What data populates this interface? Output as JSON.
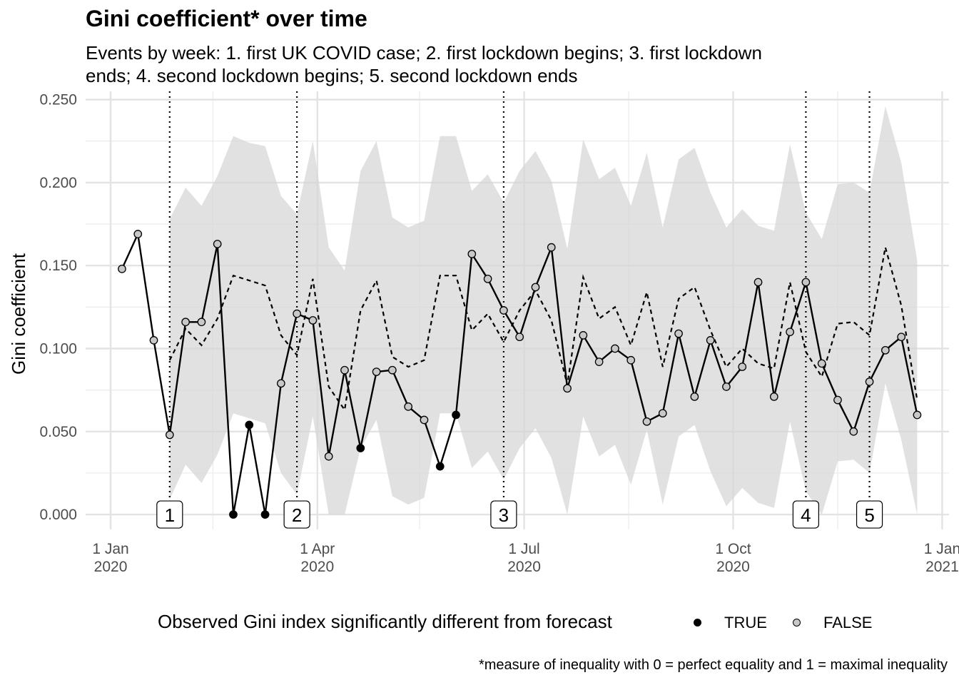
{
  "chart_data": {
    "type": "line",
    "title": "Gini coefficient* over time",
    "subtitle": "Events by week: 1. first UK COVID case; 2. first lockdown begins; 3. first lockdown ends; 4. second lockdown begins; 5. second lockdown ends",
    "ylabel": "Gini coefficient",
    "xlabel": "",
    "caption": "*measure of inequality with 0 = perfect equality and 1 = maximal inequality",
    "xlim": [
      "2019-12-21",
      "2021-01-04"
    ],
    "ylim": [
      -0.009,
      0.255
    ],
    "y_ticks": [
      0.0,
      0.05,
      0.1,
      0.15,
      0.2,
      0.25
    ],
    "y_tick_labels": [
      "0.000",
      "0.050",
      "0.100",
      "0.150",
      "0.200",
      "0.250"
    ],
    "x_ticks": [
      "2020-01-01",
      "2020-04-01",
      "2020-07-01",
      "2020-10-01",
      "2021-01-01"
    ],
    "x_tick_labels": [
      [
        "1 Jan",
        "2020"
      ],
      [
        "1 Apr",
        "2020"
      ],
      [
        "1 Jul",
        "2020"
      ],
      [
        "1 Oct",
        "2020"
      ],
      [
        "1 Jan",
        "2021"
      ]
    ],
    "grid": true,
    "legend": {
      "title": "Observed Gini index significantly different from forecast",
      "position": "bottom",
      "entries": [
        {
          "label": "TRUE",
          "color": "#000000"
        },
        {
          "label": "FALSE",
          "color": "#c8c8c8"
        }
      ]
    },
    "events": [
      {
        "label": "1",
        "date": "2020-01-27"
      },
      {
        "label": "2",
        "date": "2020-03-23"
      },
      {
        "label": "3",
        "date": "2020-06-22"
      },
      {
        "label": "4",
        "date": "2020-11-02"
      },
      {
        "label": "5",
        "date": "2020-11-30"
      }
    ],
    "observed": {
      "dates": [
        "2020-01-06",
        "2020-01-13",
        "2020-01-20",
        "2020-01-27",
        "2020-02-03",
        "2020-02-10",
        "2020-02-17",
        "2020-02-24",
        "2020-03-02",
        "2020-03-09",
        "2020-03-16",
        "2020-03-23",
        "2020-03-30",
        "2020-04-06",
        "2020-04-13",
        "2020-04-20",
        "2020-04-27",
        "2020-05-04",
        "2020-05-11",
        "2020-05-18",
        "2020-05-25",
        "2020-06-01",
        "2020-06-08",
        "2020-06-15",
        "2020-06-22",
        "2020-06-29",
        "2020-07-06",
        "2020-07-13",
        "2020-07-20",
        "2020-07-27",
        "2020-08-03",
        "2020-08-10",
        "2020-08-17",
        "2020-08-24",
        "2020-08-31",
        "2020-09-07",
        "2020-09-14",
        "2020-09-21",
        "2020-09-28",
        "2020-10-05",
        "2020-10-12",
        "2020-10-19",
        "2020-10-26",
        "2020-11-02",
        "2020-11-09",
        "2020-11-16",
        "2020-11-23",
        "2020-11-30",
        "2020-12-07",
        "2020-12-14",
        "2020-12-21"
      ],
      "values": [
        0.148,
        0.169,
        0.105,
        0.048,
        0.116,
        0.116,
        0.163,
        0.0,
        0.054,
        0.0,
        0.079,
        0.121,
        0.117,
        0.035,
        0.087,
        0.04,
        0.086,
        0.087,
        0.065,
        0.057,
        0.029,
        0.06,
        0.157,
        0.142,
        0.123,
        0.107,
        0.137,
        0.161,
        0.076,
        0.108,
        0.092,
        0.1,
        0.093,
        0.056,
        0.061,
        0.109,
        0.071,
        0.105,
        0.077,
        0.089,
        0.14,
        0.071,
        0.11,
        0.14,
        0.091,
        0.069,
        0.05,
        0.08,
        0.099,
        0.107,
        0.06
      ],
      "significant": [
        false,
        false,
        false,
        false,
        false,
        false,
        false,
        true,
        true,
        true,
        false,
        false,
        false,
        false,
        false,
        true,
        false,
        false,
        false,
        false,
        true,
        true,
        false,
        false,
        false,
        false,
        false,
        false,
        false,
        false,
        false,
        false,
        false,
        false,
        false,
        false,
        false,
        false,
        false,
        false,
        false,
        false,
        false,
        false,
        false,
        false,
        false,
        false,
        false,
        false,
        false
      ]
    },
    "forecast": {
      "dates": [
        "2020-01-27",
        "2020-02-03",
        "2020-02-10",
        "2020-02-17",
        "2020-02-24",
        "2020-03-02",
        "2020-03-09",
        "2020-03-16",
        "2020-03-23",
        "2020-03-30",
        "2020-04-06",
        "2020-04-13",
        "2020-04-20",
        "2020-04-27",
        "2020-05-04",
        "2020-05-11",
        "2020-05-18",
        "2020-05-25",
        "2020-06-01",
        "2020-06-08",
        "2020-06-15",
        "2020-06-22",
        "2020-06-29",
        "2020-07-06",
        "2020-07-13",
        "2020-07-20",
        "2020-07-27",
        "2020-08-03",
        "2020-08-10",
        "2020-08-17",
        "2020-08-24",
        "2020-08-31",
        "2020-09-07",
        "2020-09-14",
        "2020-09-21",
        "2020-09-28",
        "2020-10-05",
        "2020-10-12",
        "2020-10-19",
        "2020-10-26",
        "2020-11-02",
        "2020-11-09",
        "2020-11-16",
        "2020-11-23",
        "2020-11-30",
        "2020-12-07",
        "2020-12-14",
        "2020-12-21"
      ],
      "values": [
        0.093,
        0.112,
        0.102,
        0.118,
        0.144,
        0.141,
        0.138,
        0.108,
        0.096,
        0.142,
        0.077,
        0.063,
        0.123,
        0.141,
        0.095,
        0.089,
        0.093,
        0.144,
        0.144,
        0.111,
        0.121,
        0.104,
        0.123,
        0.135,
        0.117,
        0.078,
        0.143,
        0.118,
        0.125,
        0.102,
        0.134,
        0.089,
        0.13,
        0.137,
        0.111,
        0.089,
        0.1,
        0.091,
        0.088,
        0.14,
        0.098,
        0.083,
        0.115,
        0.116,
        0.108,
        0.161,
        0.126,
        0.069
      ],
      "upper": [
        0.178,
        0.197,
        0.186,
        0.204,
        0.228,
        0.224,
        0.222,
        0.192,
        0.181,
        0.225,
        0.161,
        0.147,
        0.207,
        0.225,
        0.179,
        0.173,
        0.177,
        0.228,
        0.228,
        0.195,
        0.205,
        0.188,
        0.207,
        0.219,
        0.201,
        0.16,
        0.226,
        0.202,
        0.209,
        0.186,
        0.218,
        0.173,
        0.214,
        0.221,
        0.194,
        0.173,
        0.184,
        0.174,
        0.171,
        0.223,
        0.182,
        0.166,
        0.199,
        0.2,
        0.194,
        0.246,
        0.212,
        0.153
      ],
      "lower": [
        0.009,
        0.03,
        0.019,
        0.036,
        0.061,
        0.058,
        0.055,
        0.025,
        0.012,
        0.059,
        0.0,
        0.0,
        0.04,
        0.057,
        0.011,
        0.006,
        0.01,
        0.061,
        0.061,
        0.028,
        0.038,
        0.021,
        0.04,
        0.052,
        0.034,
        0.0,
        0.059,
        0.035,
        0.042,
        0.018,
        0.051,
        0.006,
        0.047,
        0.054,
        0.026,
        0.005,
        0.016,
        0.007,
        0.004,
        0.056,
        0.014,
        0.0,
        0.032,
        0.033,
        0.025,
        0.079,
        0.045,
        0.0
      ]
    }
  }
}
